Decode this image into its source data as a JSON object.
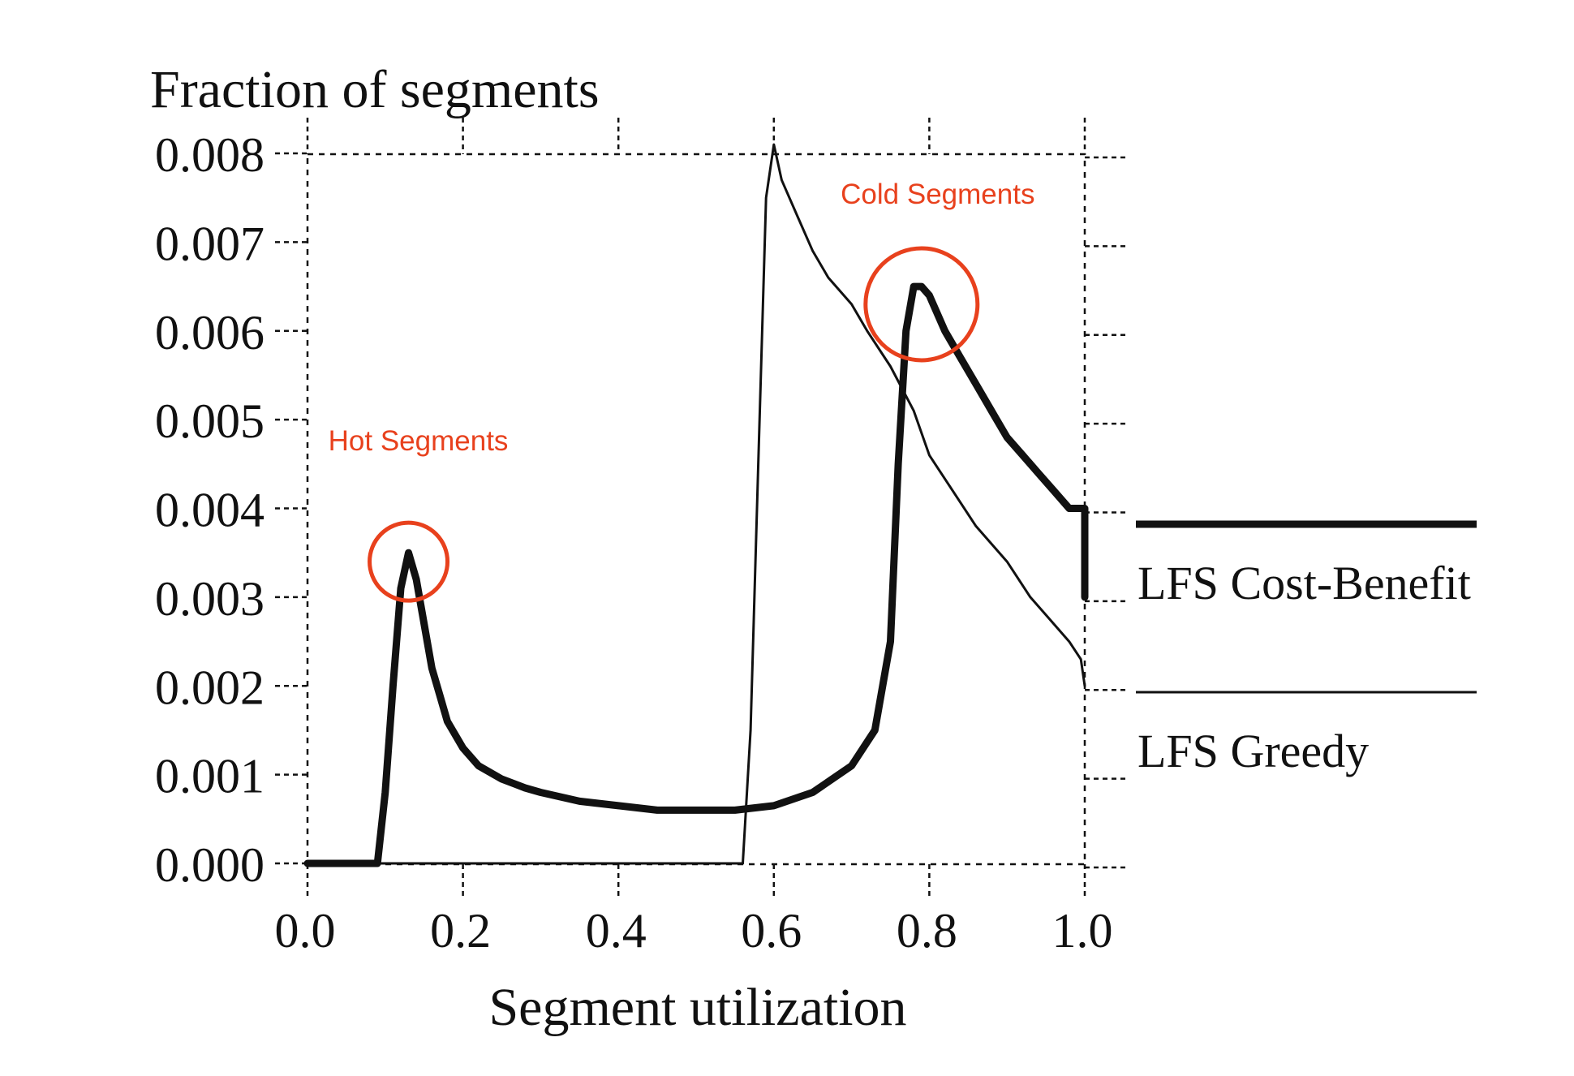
{
  "chart_data": {
    "type": "line",
    "title": "",
    "ylabel": "Fraction of segments",
    "xlabel": "Segment utilization",
    "xlim": [
      0.0,
      1.0
    ],
    "ylim": [
      0.0,
      0.008
    ],
    "grid": false,
    "legend_position": "right",
    "x_ticks": [
      "0.0",
      "0.2",
      "0.4",
      "0.6",
      "0.8",
      "1.0"
    ],
    "y_ticks": [
      "0.000",
      "0.001",
      "0.002",
      "0.003",
      "0.004",
      "0.005",
      "0.006",
      "0.007",
      "0.008"
    ],
    "series": [
      {
        "name": "LFS Cost-Benefit",
        "style": "thick",
        "x": [
          0.0,
          0.09,
          0.1,
          0.11,
          0.12,
          0.13,
          0.14,
          0.15,
          0.16,
          0.17,
          0.18,
          0.2,
          0.22,
          0.25,
          0.28,
          0.3,
          0.35,
          0.4,
          0.45,
          0.5,
          0.55,
          0.6,
          0.65,
          0.7,
          0.73,
          0.75,
          0.76,
          0.77,
          0.78,
          0.79,
          0.8,
          0.82,
          0.84,
          0.86,
          0.88,
          0.9,
          0.92,
          0.94,
          0.96,
          0.98,
          0.995,
          1.0,
          1.0
        ],
        "y": [
          0.0,
          0.0,
          0.0008,
          0.002,
          0.0031,
          0.0035,
          0.0032,
          0.0027,
          0.0022,
          0.0019,
          0.0016,
          0.0013,
          0.0011,
          0.00095,
          0.00085,
          0.0008,
          0.0007,
          0.00065,
          0.0006,
          0.0006,
          0.0006,
          0.00065,
          0.0008,
          0.0011,
          0.0015,
          0.0025,
          0.0045,
          0.006,
          0.0065,
          0.0065,
          0.0064,
          0.006,
          0.0057,
          0.0054,
          0.0051,
          0.0048,
          0.0046,
          0.0044,
          0.0042,
          0.004,
          0.004,
          0.004,
          0.003
        ]
      },
      {
        "name": "LFS Greedy",
        "style": "thin",
        "x": [
          0.0,
          0.56,
          0.57,
          0.58,
          0.59,
          0.6,
          0.61,
          0.63,
          0.65,
          0.67,
          0.7,
          0.72,
          0.75,
          0.78,
          0.8,
          0.83,
          0.86,
          0.9,
          0.93,
          0.96,
          0.98,
          0.995,
          1.0
        ],
        "y": [
          0.0,
          0.0,
          0.0015,
          0.0045,
          0.0075,
          0.0081,
          0.0077,
          0.0073,
          0.0069,
          0.0066,
          0.0063,
          0.006,
          0.0056,
          0.0051,
          0.0046,
          0.0042,
          0.0038,
          0.0034,
          0.003,
          0.0027,
          0.0025,
          0.0023,
          0.002
        ]
      }
    ],
    "annotations": [
      {
        "text": "Hot Segments",
        "x": 0.13,
        "y": 0.0034,
        "color": "#e8411d"
      },
      {
        "text": "Cold Segments",
        "x": 0.79,
        "y": 0.0063,
        "color": "#e8411d"
      }
    ]
  }
}
